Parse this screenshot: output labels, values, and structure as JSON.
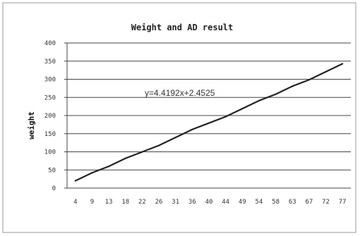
{
  "chart_data": {
    "type": "line",
    "title": "Weight and AD result",
    "xlabel": "",
    "ylabel": "weight",
    "ylim": [
      0,
      400
    ],
    "yticks": [
      "0",
      "50",
      "100",
      "150",
      "200",
      "250",
      "300",
      "350",
      "400"
    ],
    "grid": true,
    "categories": [
      "4",
      "9",
      "13",
      "18",
      "22",
      "26",
      "31",
      "36",
      "40",
      "44",
      "49",
      "54",
      "58",
      "63",
      "67",
      "72",
      "77"
    ],
    "series": [
      {
        "values": [
          20.1,
          42.2,
          59.9,
          82.0,
          99.7,
          117.4,
          139.5,
          161.6,
          179.2,
          196.9,
          219.0,
          241.1,
          258.8,
          280.9,
          298.5,
          320.6,
          342.7
        ],
        "color": "#222222"
      }
    ],
    "annotation": "y=4.4192x+2.4525"
  }
}
